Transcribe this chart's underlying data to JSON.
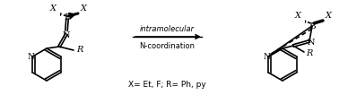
{
  "bg_color": "#ffffff",
  "line_color": "#000000",
  "arrow_color": "#000000",
  "arrow_text_line1": "intramolecular",
  "arrow_text_line2": "N-coordination",
  "legend_text": "X= Et, F; R= Ph, py",
  "figsize": [
    3.78,
    1.06
  ],
  "dpi": 100
}
